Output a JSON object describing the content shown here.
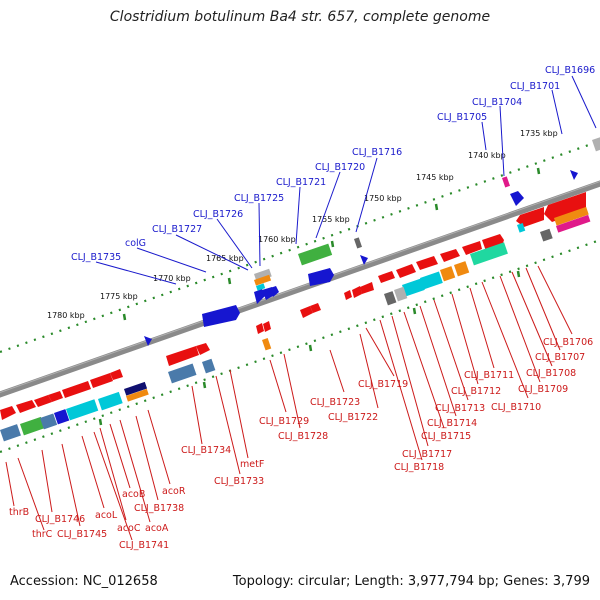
{
  "title": "Clostridium botulinum Ba4 str. 657, complete genome",
  "footer": {
    "accession": "Accession: NC_012658",
    "summary": "Topology: circular; Length: 3,977,794 bp; Genes: 3,799"
  },
  "colors": {
    "backbone": "#8a8a8a",
    "tick": "#2a8a2a",
    "top_label": "#1a1acc",
    "bottom_label": "#cc1a1a",
    "gene_red": "#e81010",
    "gene_blue": "#1616d0",
    "gene_cyan": "#00c8d8",
    "gene_green": "#40b040",
    "gene_steel": "#4a7aaa",
    "gene_orange": "#f08a10",
    "gene_gray": "#888888",
    "gene_magenta": "#e01a8a",
    "gene_navy": "#101070",
    "gene_teal": "#20d8a0"
  },
  "kbp_labels": [
    "1735 kbp",
    "1740 kbp",
    "1745 kbp",
    "1750 kbp",
    "1755 kbp",
    "1760 kbp",
    "1765 kbp",
    "1770 kbp",
    "1775 kbp",
    "1780 kbp"
  ],
  "top_labels": [
    "CLJ_B1696",
    "CLJ_B1701",
    "CLJ_B1704",
    "CLJ_B1705",
    "CLJ_B1716",
    "CLJ_B1720",
    "CLJ_B1721",
    "CLJ_B1725",
    "CLJ_B1726",
    "CLJ_B1727",
    "colG",
    "CLJ_B1735"
  ],
  "bottom_labels": [
    "CLJ_B1706",
    "CLJ_B1707",
    "CLJ_B1708",
    "CLJ_B1709",
    "CLJ_B1710",
    "CLJ_B1711",
    "CLJ_B1712",
    "CLJ_B1713",
    "CLJ_B1714",
    "CLJ_B1715",
    "CLJ_B1717",
    "CLJ_B1718",
    "CLJ_B1719",
    "CLJ_B1722",
    "CLJ_B1723",
    "CLJ_B1728",
    "CLJ_B1729",
    "metF",
    "CLJ_B1733",
    "CLJ_B1734",
    "acoR",
    "CLJ_B1738",
    "acoA",
    "acoB",
    "acoC",
    "CLJ_B1741",
    "acoL",
    "CLJ_B1745",
    "CLJ_B1746",
    "thrC",
    "thrB"
  ]
}
